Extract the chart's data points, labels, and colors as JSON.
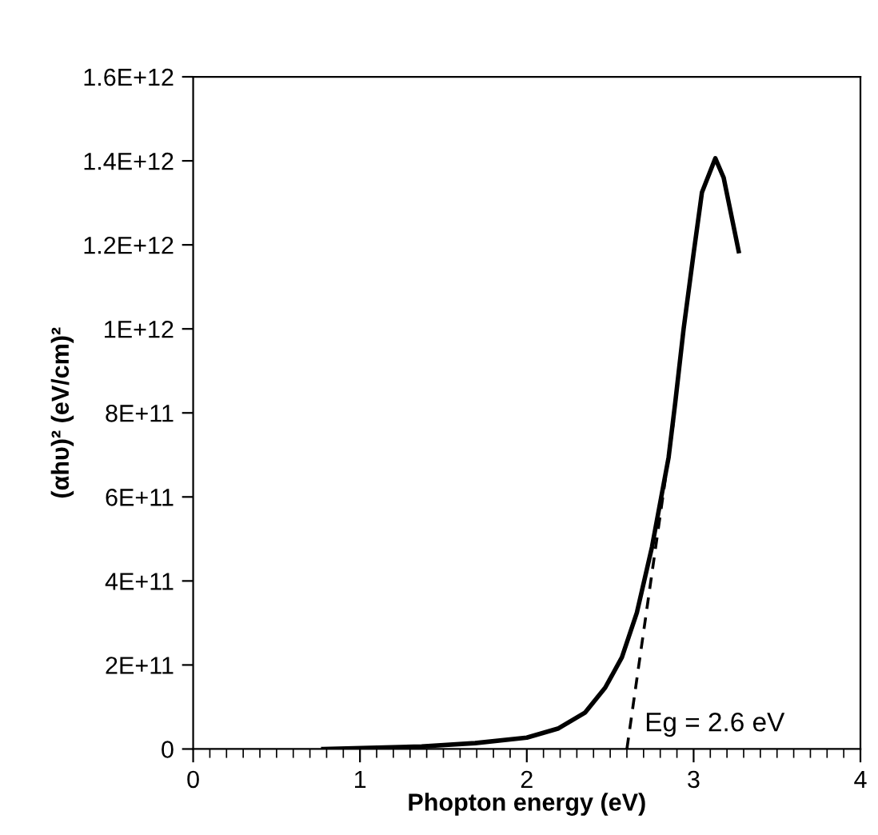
{
  "chart_data": {
    "type": "line",
    "xlabel": "Phopton energy (eV)",
    "ylabel": "(αhυ)² (eV/cm)²",
    "xlim": [
      0,
      4
    ],
    "xticks": [
      0,
      1,
      2,
      3,
      4
    ],
    "ylim": [
      0,
      1600000000000.0
    ],
    "yticks": [
      {
        "value": 0,
        "label": "0"
      },
      {
        "value": 200000000000.0,
        "label": "2E+11"
      },
      {
        "value": 400000000000.0,
        "label": "4E+11"
      },
      {
        "value": 600000000000.0,
        "label": "6E+11"
      },
      {
        "value": 800000000000.0,
        "label": "8E+11"
      },
      {
        "value": 1000000000000.0,
        "label": "1E+12"
      },
      {
        "value": 1200000000000.0,
        "label": "1.2E+12"
      },
      {
        "value": 1400000000000.0,
        "label": "1.4E+12"
      },
      {
        "value": 1600000000000.0,
        "label": "1.6E+12"
      }
    ],
    "grid": false,
    "legend": false,
    "marker": "none",
    "series": [
      {
        "color": "#000000",
        "line_style": "solid",
        "x": [
          0.78,
          1.37,
          1.69,
          2.0,
          2.19,
          2.35,
          2.47,
          2.57,
          2.66,
          2.75,
          2.85,
          2.89,
          2.94,
          3.0,
          3.05,
          3.13,
          3.18,
          3.27
        ],
        "values": [
          0,
          6000000000.0,
          14000000000.0,
          27000000000.0,
          49000000000.0,
          87000000000.0,
          146000000000.0,
          218000000000.0,
          325000000000.0,
          480000000000.0,
          694000000000.0,
          825000000000.0,
          1000000000000.0,
          1180000000000.0,
          1325000000000.0,
          1406000000000.0,
          1360000000000.0,
          1185000000000.0
        ]
      },
      {
        "color": "#000000",
        "line_style": "dashed",
        "x": [
          2.6,
          2.88
        ],
        "values": [
          0,
          780000000000.0
        ]
      }
    ],
    "annotations": [
      {
        "text": "Eg = 2.6 eV",
        "x": 2.6,
        "y": 0
      }
    ]
  }
}
